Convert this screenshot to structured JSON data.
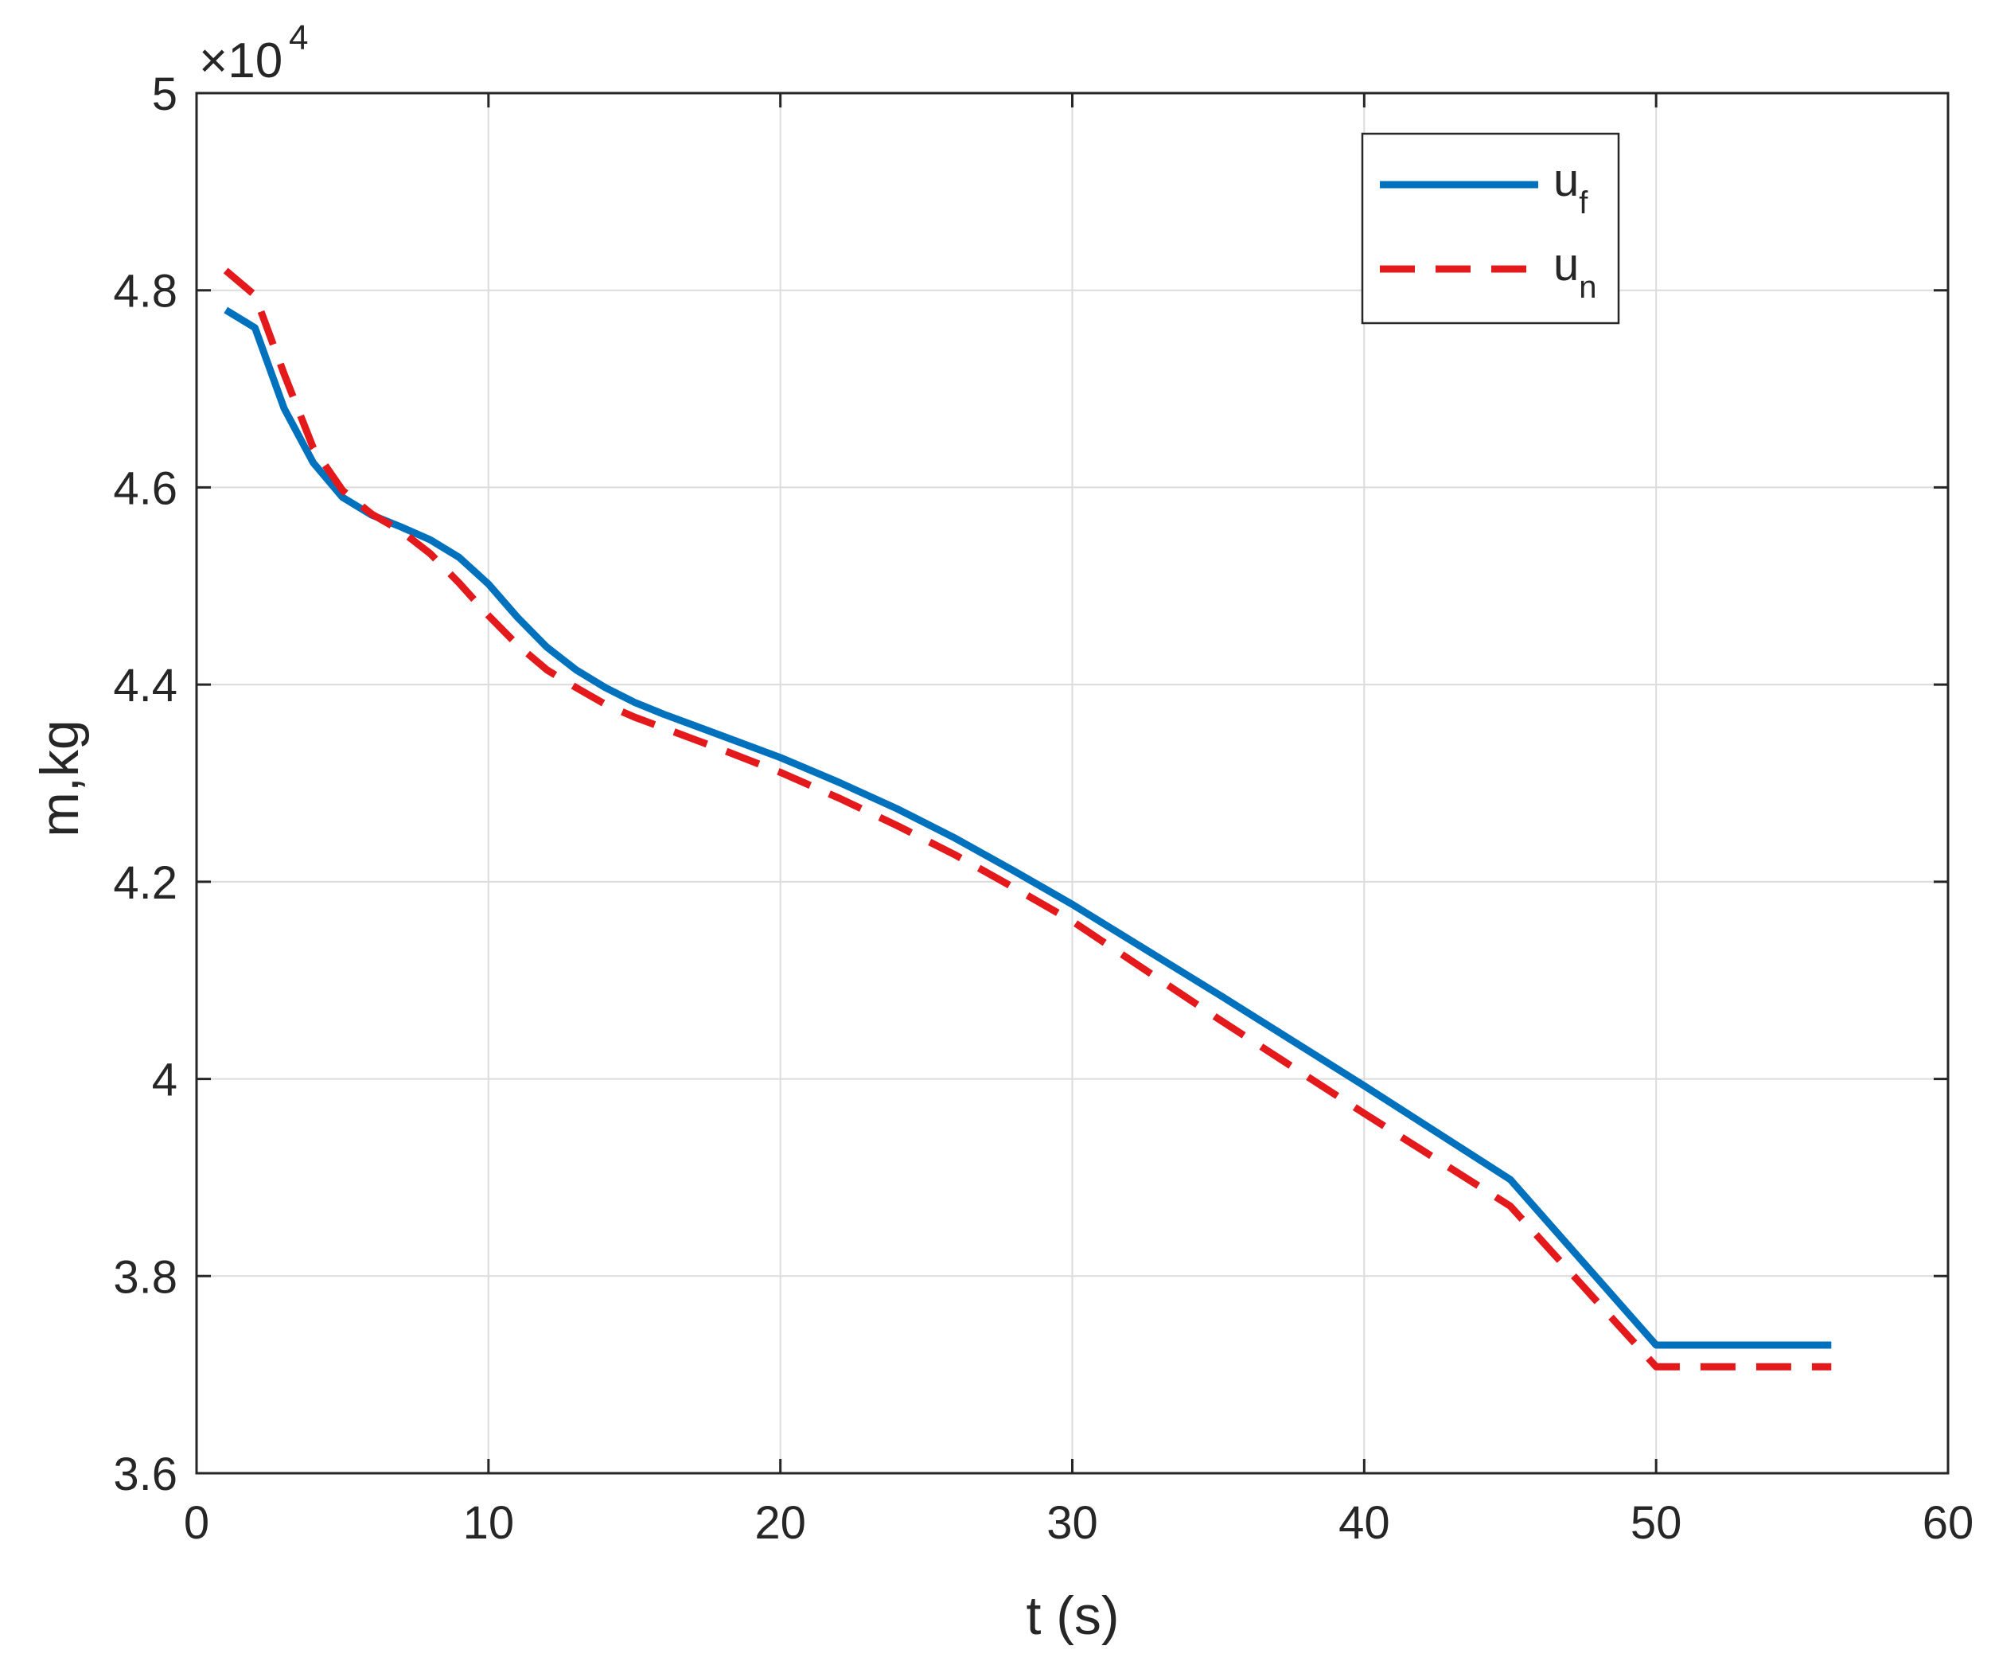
{
  "chart_data": {
    "type": "line",
    "xlabel": "t (s)",
    "ylabel": "m,kg",
    "exponent_base": "×10",
    "exponent_power": "4",
    "xlim": [
      0,
      60
    ],
    "ylim": [
      36000,
      50000
    ],
    "xticks": [
      0,
      10,
      20,
      30,
      40,
      50,
      60
    ],
    "yticks": [
      36000,
      38000,
      40000,
      42000,
      44000,
      46000,
      48000,
      50000
    ],
    "xtick_labels": [
      "0",
      "10",
      "20",
      "30",
      "40",
      "50",
      "60"
    ],
    "ytick_labels": [
      "3.6",
      "3.8",
      "4",
      "4.2",
      "4.4",
      "4.6",
      "4.8",
      "5"
    ],
    "grid": true,
    "legend_position": "top-right",
    "series": [
      {
        "label_main": "u",
        "label_sub": "f",
        "color": "#0072BD",
        "style": "solid",
        "x": [
          1,
          2,
          3,
          4,
          5,
          6,
          7,
          8,
          9,
          10,
          11,
          12,
          13,
          14,
          15,
          16,
          17,
          18,
          20,
          22,
          24,
          26,
          28,
          30,
          35,
          40,
          45,
          50,
          56
        ],
        "y": [
          47800,
          47620,
          46800,
          46250,
          45900,
          45720,
          45600,
          45470,
          45290,
          45020,
          44680,
          44380,
          44150,
          43970,
          43820,
          43700,
          43590,
          43480,
          43260,
          43010,
          42740,
          42440,
          42110,
          41770,
          40860,
          39930,
          38980,
          37300,
          37300
        ]
      },
      {
        "label_main": "u",
        "label_sub": "n",
        "color": "#E3191C",
        "style": "dashed",
        "x": [
          1,
          2,
          3,
          4,
          5,
          6,
          7,
          8,
          9,
          10,
          11,
          12,
          13,
          14,
          15,
          16,
          17,
          18,
          20,
          22,
          24,
          26,
          28,
          30,
          35,
          40,
          45,
          50,
          56
        ],
        "y": [
          48200,
          47950,
          47150,
          46400,
          45970,
          45730,
          45560,
          45330,
          45030,
          44700,
          44400,
          44150,
          43970,
          43800,
          43670,
          43560,
          43450,
          43340,
          43110,
          42850,
          42570,
          42270,
          41940,
          41600,
          40610,
          39650,
          38710,
          37080,
          37080
        ]
      }
    ]
  }
}
